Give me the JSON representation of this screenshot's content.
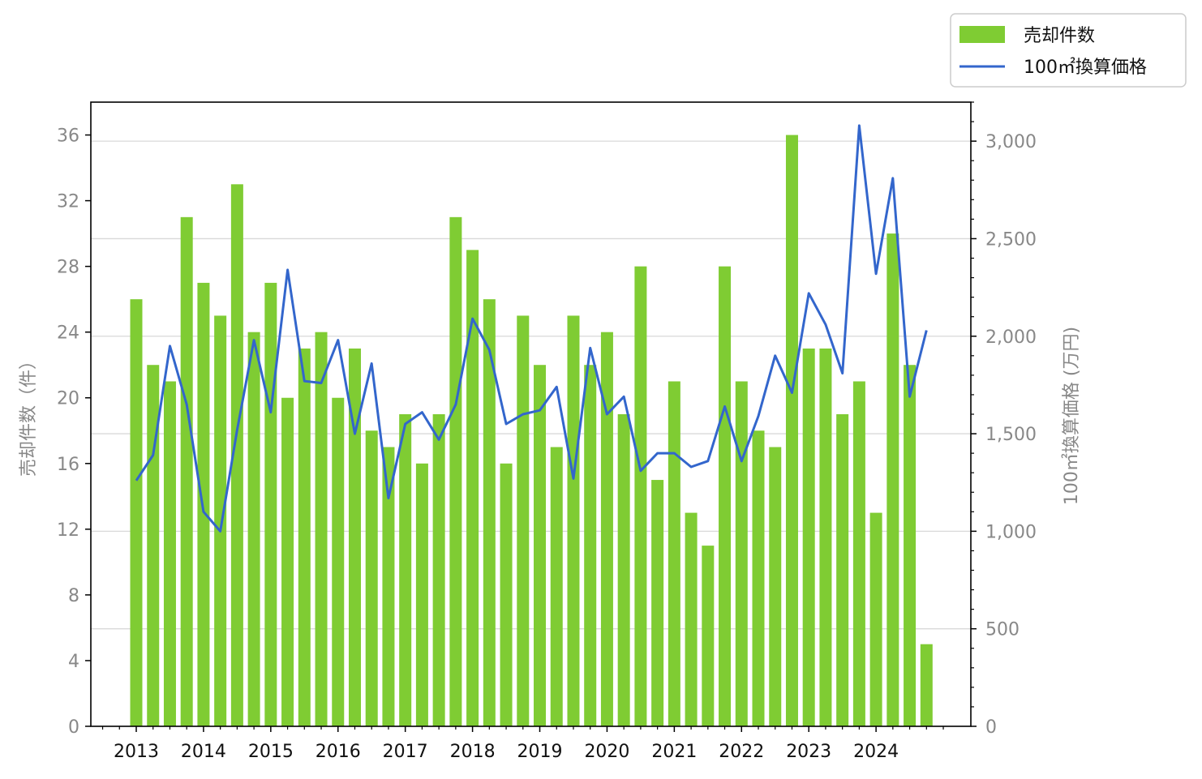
{
  "chart_data": {
    "type": "bar",
    "title": "",
    "xlabel": "",
    "ylabel": "売却件数（件）",
    "y2label": "100㎡換算価格 (万円)",
    "x_tick_labels": [
      "2013",
      "2014",
      "2015",
      "2016",
      "2017",
      "2018",
      "2019",
      "2020",
      "2021",
      "2022",
      "2023",
      "2024"
    ],
    "ylim": [
      0,
      38
    ],
    "y_ticks": [
      0,
      4,
      8,
      12,
      16,
      20,
      24,
      28,
      32,
      36
    ],
    "y2lim": [
      0,
      3200
    ],
    "y2_ticks": [
      0,
      500,
      1000,
      1500,
      2000,
      2500,
      3000
    ],
    "y2_tick_labels": [
      "0",
      "500",
      "1,000",
      "1,500",
      "2,000",
      "2,500",
      "3,000"
    ],
    "grid": "horizontal (right axis)",
    "legend_position": "top-right, outside plot",
    "series": [
      {
        "name": "売却件数",
        "type": "bar",
        "axis": "left",
        "color": "#7fcc33",
        "values": [
          26,
          22,
          21,
          31,
          27,
          25,
          33,
          24,
          27,
          20,
          23,
          24,
          20,
          23,
          18,
          17,
          19,
          16,
          19,
          31,
          29,
          26,
          16,
          25,
          22,
          17,
          25,
          22,
          24,
          19,
          28,
          15,
          21,
          13,
          11,
          28,
          21,
          18,
          17,
          36,
          23,
          23,
          19,
          21,
          13,
          30,
          22,
          5
        ]
      },
      {
        "name": "100㎡換算価格",
        "type": "line",
        "axis": "right",
        "color": "#3366cc",
        "values": [
          1260,
          1390,
          1950,
          1650,
          1100,
          1000,
          1520,
          1980,
          1610,
          2340,
          1770,
          1760,
          1980,
          1500,
          1860,
          1170,
          1550,
          1610,
          1470,
          1650,
          2090,
          1930,
          1550,
          1600,
          1620,
          1740,
          1270,
          1940,
          1600,
          1690,
          1310,
          1400,
          1400,
          1330,
          1360,
          1640,
          1360,
          1590,
          1900,
          1710,
          2220,
          2060,
          1810,
          3080,
          2320,
          2810,
          1690,
          2030
        ]
      }
    ]
  }
}
